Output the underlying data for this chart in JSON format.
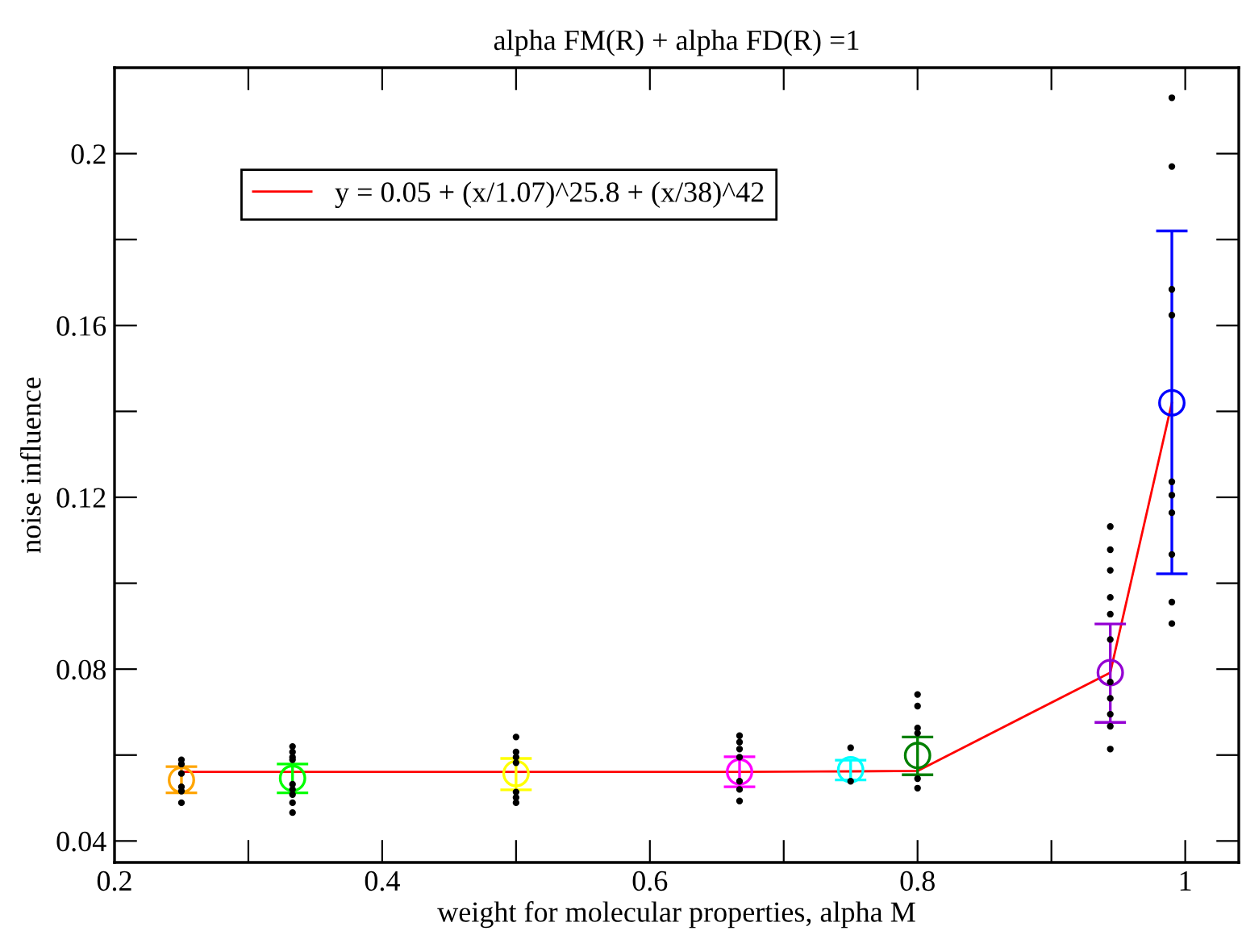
{
  "chart_data": {
    "type": "scatter",
    "title": "alpha FM(R) + alpha FD(R) =1",
    "xlabel": "weight for molecular properties, alpha M",
    "ylabel": "noise influence",
    "xlim": [
      0.2,
      1.04
    ],
    "ylim": [
      0.035,
      0.22
    ],
    "xticks": [
      0.2,
      {
        "value": 0.3,
        "label": null
      },
      0.4,
      {
        "value": 0.5,
        "label": null
      },
      0.6,
      {
        "value": 0.7,
        "label": null
      },
      0.8,
      {
        "value": 0.9,
        "label": null
      },
      1
    ],
    "yticks": [
      0.04,
      {
        "value": 0.06,
        "label": null
      },
      0.08,
      {
        "value": 0.1,
        "label": null
      },
      0.12,
      {
        "value": 0.14,
        "label": null
      },
      0.16,
      {
        "value": 0.18,
        "label": null
      },
      0.2
    ],
    "grid": false,
    "legend": "top left",
    "series": [
      {
        "marker": "circle",
        "color": "#000000",
        "x": [
          0.25,
          0.25,
          0.25,
          0.25,
          0.25,
          0.25,
          0.333,
          0.333,
          0.333,
          0.333,
          0.333,
          0.333,
          0.333,
          0.333,
          0.333,
          0.5,
          0.5,
          0.5,
          0.5,
          0.5,
          0.5,
          0.5,
          0.667,
          0.667,
          0.667,
          0.667,
          0.667,
          0.667,
          0.667,
          0.75,
          0.75,
          0.8,
          0.8,
          0.8,
          0.8,
          0.8,
          0.8,
          0.944,
          0.944,
          0.944,
          0.944,
          0.944,
          0.944,
          0.944,
          0.944,
          0.944,
          0.944,
          0.944,
          0.99,
          0.99,
          0.99,
          0.99,
          0.99,
          0.99,
          0.99,
          0.99,
          0.99,
          0.99
        ],
        "values": [
          0.0589,
          0.0579,
          0.0557,
          0.0526,
          0.0516,
          0.0489,
          0.062,
          0.0607,
          0.0595,
          0.0589,
          0.0532,
          0.052,
          0.0508,
          0.0489,
          0.0466,
          0.0642,
          0.0607,
          0.0595,
          0.0582,
          0.0514,
          0.0501,
          0.0489,
          0.0645,
          0.063,
          0.0614,
          0.0595,
          0.0539,
          0.052,
          0.0493,
          0.0617,
          0.0539,
          0.0741,
          0.0714,
          0.0663,
          0.0651,
          0.0545,
          0.0523,
          0.1132,
          0.1078,
          0.103,
          0.0967,
          0.0928,
          0.0869,
          0.077,
          0.0732,
          0.0695,
          0.0667,
          0.0614,
          0.213,
          0.197,
          0.1684,
          0.1624,
          0.1236,
          0.1205,
          0.1164,
          0.1067,
          0.0956,
          0.0906
        ]
      },
      {
        "marker": "circle",
        "x": [
          0.25,
          0.333,
          0.5,
          0.667,
          0.75,
          0.8,
          0.944,
          0.99
        ],
        "colors": [
          "#ffa500",
          "#00ff00",
          "#ffff00",
          "#ff00ff",
          "#00ffff",
          "#008000",
          "#9400d3",
          "#0000ff"
        ],
        "values": [
          0.0542,
          0.0546,
          0.0557,
          0.0561,
          0.0566,
          0.0599,
          0.0792,
          0.142
        ],
        "errors": [
          [
            0.0512,
            0.0573
          ],
          [
            0.0512,
            0.0579
          ],
          [
            0.0519,
            0.0592
          ],
          [
            0.0526,
            0.0596
          ],
          [
            0.0542,
            0.0588
          ],
          [
            0.0554,
            0.0642
          ],
          [
            0.0676,
            0.0905
          ],
          [
            0.1022,
            0.182
          ]
        ]
      },
      {
        "type": "line",
        "name": "y = 0.05 + (x/1.07)^25.8 + (x/38)^42",
        "color": "#ff0000",
        "marker": "none",
        "line_style": "solid",
        "x": [
          0.25,
          0.333,
          0.5,
          0.667,
          0.75,
          0.8,
          0.944,
          0.99
        ],
        "values": [
          0.0561,
          0.0561,
          0.0561,
          0.0561,
          0.0562,
          0.0563,
          0.0792,
          0.142
        ]
      }
    ]
  }
}
